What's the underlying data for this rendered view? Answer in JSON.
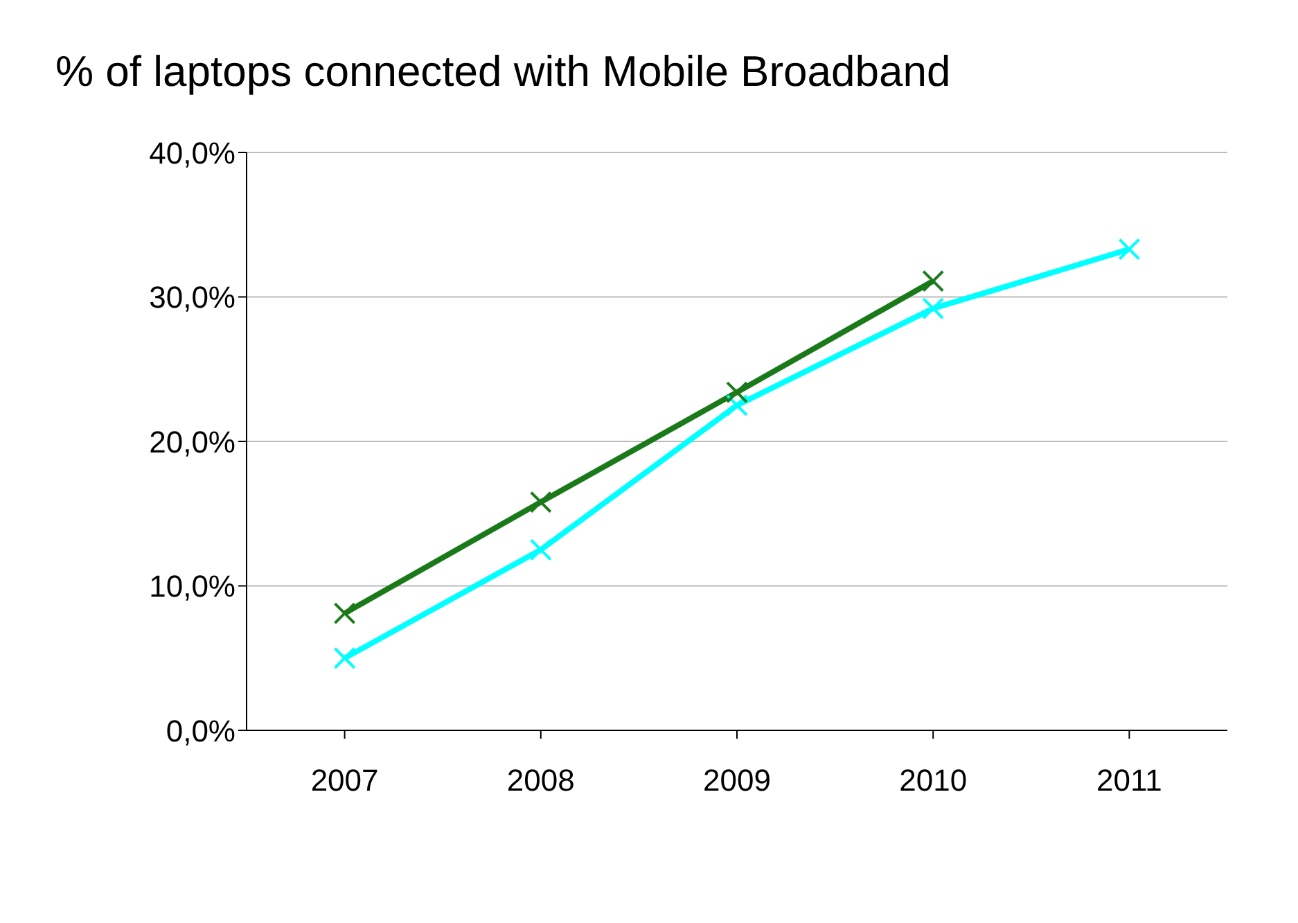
{
  "chart_data": {
    "type": "line",
    "title": "% of laptops connected with Mobile Broadband",
    "categories": [
      "2007",
      "2008",
      "2009",
      "2010",
      "2011"
    ],
    "series": [
      {
        "color": "#00ffff",
        "marker": "cross",
        "values": [
          5.0,
          12.5,
          22.5,
          29.2,
          33.3
        ]
      },
      {
        "color": "#1a7a1a",
        "marker": "cross",
        "values": [
          8.1,
          15.8,
          23.4,
          31.1,
          null
        ]
      }
    ],
    "ylim": [
      0,
      40
    ],
    "yticks": [
      {
        "value": 0,
        "label": "0,0%"
      },
      {
        "value": 10,
        "label": "10,0%"
      },
      {
        "value": 20,
        "label": "20,0%"
      },
      {
        "value": 30,
        "label": "30,0%"
      },
      {
        "value": 40,
        "label": "40,0%"
      }
    ],
    "grid": "y",
    "legend": false
  }
}
